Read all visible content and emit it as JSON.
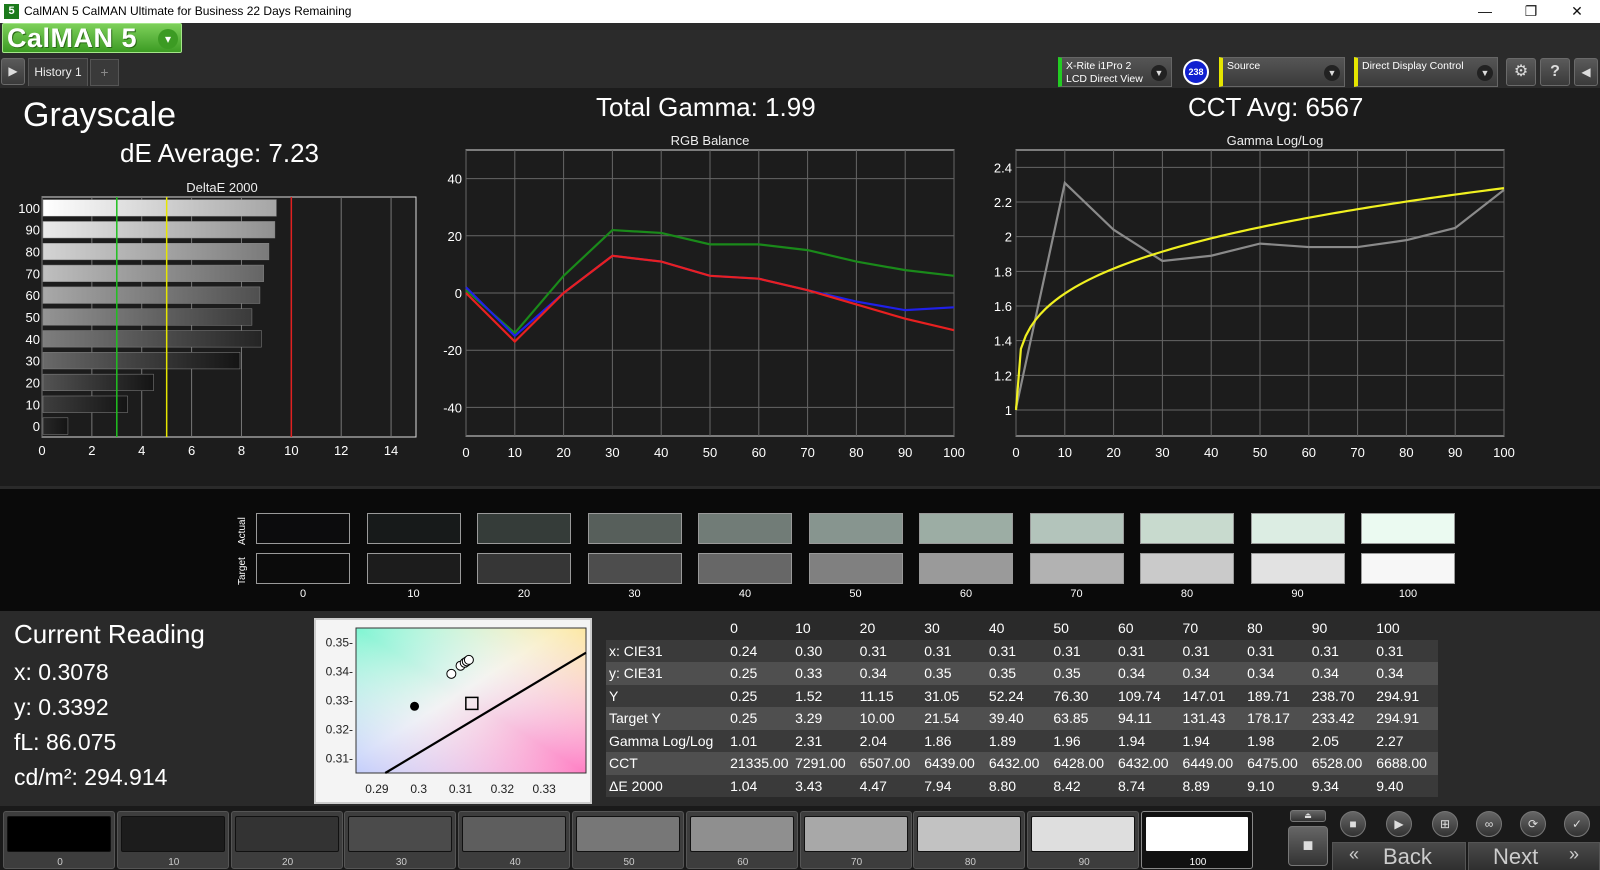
{
  "window": {
    "title": "CalMAN 5 CalMAN Ultimate for Business 22 Days Remaining",
    "app_icon": "5",
    "minimize": "—",
    "maximize": "❐",
    "close": "✕"
  },
  "toolbar": {
    "logo": "CalMAN 5",
    "logo_dropdown": "▾",
    "tabs": [
      {
        "label": "History 1"
      }
    ],
    "add_tab": "+",
    "meter": {
      "line1": "X-Rite i1Pro 2",
      "line2": "LCD Direct View",
      "badge": "238"
    },
    "source": {
      "label": "Source"
    },
    "display": {
      "label": "Direct Display Control"
    }
  },
  "main": {
    "heading": "Grayscale",
    "de_average": "dE Average: 7.23",
    "total_gamma": "Total Gamma: 1.99",
    "cct_avg": "CCT Avg: 6567"
  },
  "chart_data": [
    {
      "type": "bar",
      "title": "DeltaE 2000",
      "orientation": "horizontal",
      "categories": [
        "100",
        "90",
        "80",
        "70",
        "60",
        "50",
        "40",
        "30",
        "20",
        "10",
        "0"
      ],
      "values": [
        9.4,
        9.34,
        9.1,
        8.89,
        8.74,
        8.42,
        8.8,
        7.94,
        4.47,
        3.43,
        1.04
      ],
      "xlim": [
        0,
        15
      ],
      "xticks": [
        0,
        2,
        4,
        6,
        8,
        10,
        12,
        14
      ],
      "thresholds": [
        {
          "value": 3,
          "color": "#20c020"
        },
        {
          "value": 5,
          "color": "#e6e600"
        },
        {
          "value": 10,
          "color": "#e02020"
        }
      ]
    },
    {
      "type": "line",
      "title": "RGB Balance",
      "x": [
        0,
        10,
        20,
        30,
        40,
        50,
        60,
        70,
        80,
        90,
        100
      ],
      "xticks": [
        0,
        10,
        20,
        30,
        40,
        50,
        60,
        70,
        80,
        90,
        100
      ],
      "ylim": [
        -50,
        50
      ],
      "yticks": [
        40,
        20,
        0,
        -20,
        -40
      ],
      "series": [
        {
          "color": "#1a8a1a",
          "values": [
            1,
            -14,
            6,
            22,
            21,
            17,
            17,
            15,
            11,
            8,
            6
          ]
        },
        {
          "color": "#2020e8",
          "values": [
            2,
            -15,
            0,
            13,
            11,
            6,
            5,
            1,
            -3,
            -6,
            -5
          ]
        },
        {
          "color": "#e82020",
          "values": [
            0,
            -17,
            0,
            13,
            11,
            6,
            5,
            1,
            -4,
            -9,
            -13
          ]
        }
      ]
    },
    {
      "type": "line",
      "title": "Gamma Log/Log",
      "x": [
        0,
        10,
        20,
        30,
        40,
        50,
        60,
        70,
        80,
        90,
        100
      ],
      "xticks": [
        0,
        10,
        20,
        30,
        40,
        50,
        60,
        70,
        80,
        90,
        100
      ],
      "ylim": [
        0.85,
        2.5
      ],
      "yticks": [
        2.4,
        2.2,
        2,
        1.8,
        1.6,
        1.4,
        1.2,
        1
      ],
      "series": [
        {
          "color": "#8a8a8a",
          "values": [
            1.01,
            2.31,
            2.04,
            1.86,
            1.89,
            1.96,
            1.94,
            1.94,
            1.98,
            2.05,
            2.27
          ]
        },
        {
          "color": "#f0f020",
          "curve": "target",
          "start": 1.0,
          "end": 2.28
        }
      ]
    }
  ],
  "swatches": {
    "actual_label": "Actual",
    "target_label": "Target",
    "items": [
      {
        "label": "0",
        "actual": "#0c0c0d",
        "target": "#0b0b0b"
      },
      {
        "label": "10",
        "actual": "#171a1a",
        "target": "#1c1c1c"
      },
      {
        "label": "20",
        "actual": "#353c39",
        "target": "#363636"
      },
      {
        "label": "30",
        "actual": "#575f5b",
        "target": "#4d4d4d"
      },
      {
        "label": "40",
        "actual": "#717c77",
        "target": "#676767"
      },
      {
        "label": "50",
        "actual": "#87958f",
        "target": "#808080"
      },
      {
        "label": "60",
        "actual": "#9cada4",
        "target": "#9a9a9a"
      },
      {
        "label": "70",
        "actual": "#b3c4bb",
        "target": "#b2b2b2"
      },
      {
        "label": "80",
        "actual": "#c8dace",
        "target": "#cacaca"
      },
      {
        "label": "90",
        "actual": "#dcede3",
        "target": "#e2e2e2"
      },
      {
        "label": "100",
        "actual": "#ebfaf1",
        "target": "#f7f7f7"
      }
    ]
  },
  "reading": {
    "title": "Current Reading",
    "x": "x: 0.3078",
    "y": "y: 0.3392",
    "fl": "fL: 86.075",
    "cdm2": "cd/m²: 294.914"
  },
  "cie_chart": {
    "xlim": [
      0.285,
      0.34
    ],
    "ylim": [
      0.305,
      0.355
    ],
    "xticks": [
      "0.29",
      "0.3",
      "0.31",
      "0.32",
      "0.33"
    ],
    "yticks": [
      "0.35-",
      "0.34-",
      "0.33-",
      "0.32-",
      "0.31-"
    ],
    "target": {
      "x": 0.3127,
      "y": 0.329
    },
    "current": {
      "x": 0.299,
      "y": 0.328
    },
    "points": [
      {
        "x": 0.3078,
        "y": 0.3392
      },
      {
        "x": 0.31,
        "y": 0.342
      },
      {
        "x": 0.311,
        "y": 0.343
      },
      {
        "x": 0.3115,
        "y": 0.3435
      },
      {
        "x": 0.312,
        "y": 0.344
      }
    ]
  },
  "table": {
    "columns": [
      "",
      "0",
      "10",
      "20",
      "30",
      "40",
      "50",
      "60",
      "70",
      "80",
      "90",
      "100"
    ],
    "rows": [
      [
        "x: CIE31",
        "0.24",
        "0.30",
        "0.31",
        "0.31",
        "0.31",
        "0.31",
        "0.31",
        "0.31",
        "0.31",
        "0.31",
        "0.31"
      ],
      [
        "y: CIE31",
        "0.25",
        "0.33",
        "0.34",
        "0.35",
        "0.35",
        "0.35",
        "0.34",
        "0.34",
        "0.34",
        "0.34",
        "0.34"
      ],
      [
        "Y",
        "0.25",
        "1.52",
        "11.15",
        "31.05",
        "52.24",
        "76.30",
        "109.74",
        "147.01",
        "189.71",
        "238.70",
        "294.91"
      ],
      [
        "Target Y",
        "0.25",
        "3.29",
        "10.00",
        "21.54",
        "39.40",
        "63.85",
        "94.11",
        "131.43",
        "178.17",
        "233.42",
        "294.91"
      ],
      [
        "Gamma Log/Log",
        "1.01",
        "2.31",
        "2.04",
        "1.86",
        "1.89",
        "1.96",
        "1.94",
        "1.94",
        "1.98",
        "2.05",
        "2.27"
      ],
      [
        "CCT",
        "21335.00",
        "7291.00",
        "6507.00",
        "6439.00",
        "6432.00",
        "6428.00",
        "6432.00",
        "6449.00",
        "6475.00",
        "6528.00",
        "6688.00"
      ],
      [
        "ΔE 2000",
        "1.04",
        "3.43",
        "4.47",
        "7.94",
        "8.80",
        "8.42",
        "8.74",
        "8.89",
        "9.10",
        "9.34",
        "9.40"
      ]
    ]
  },
  "patches": [
    {
      "label": "0",
      "color": "#000000"
    },
    {
      "label": "10",
      "color": "#1c1c1c"
    },
    {
      "label": "20",
      "color": "#333333"
    },
    {
      "label": "30",
      "color": "#4b4b4b"
    },
    {
      "label": "40",
      "color": "#5e5e5e"
    },
    {
      "label": "50",
      "color": "#777777"
    },
    {
      "label": "60",
      "color": "#8f8f8f"
    },
    {
      "label": "70",
      "color": "#a8a8a8"
    },
    {
      "label": "80",
      "color": "#c2c2c2"
    },
    {
      "label": "90",
      "color": "#dedede"
    },
    {
      "label": "100",
      "color": "#ffffff"
    }
  ],
  "nav": {
    "back": "Back",
    "next": "Next"
  }
}
